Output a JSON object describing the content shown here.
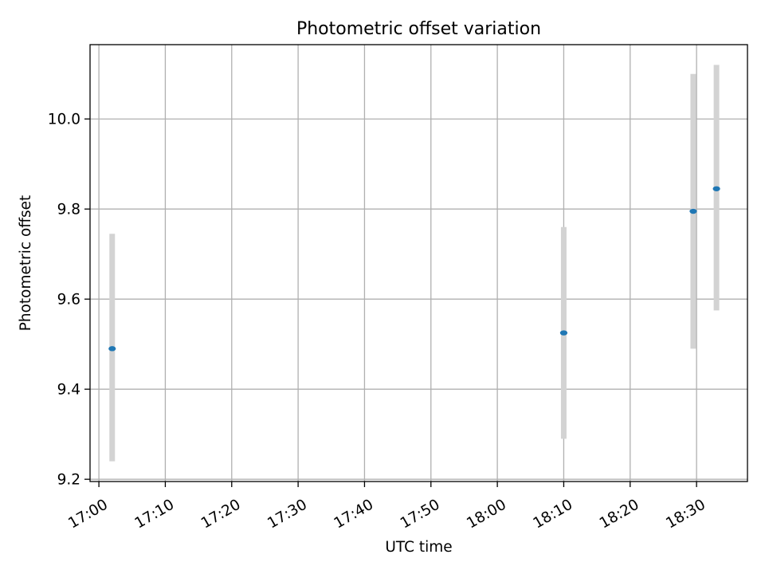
{
  "chart_data": {
    "type": "scatter",
    "title": "Photometric offset variation",
    "xlabel": "UTC time",
    "ylabel": "Photometric offset",
    "x_ticks": [
      "17:00",
      "17:10",
      "17:20",
      "17:30",
      "17:40",
      "17:50",
      "18:00",
      "18:10",
      "18:20",
      "18:30"
    ],
    "y_ticks": [
      "9.2",
      "9.4",
      "9.6",
      "9.8",
      "10.0"
    ],
    "xlim": [
      "16:58:40",
      "18:37:40"
    ],
    "ylim": [
      9.195,
      10.165
    ],
    "grid": true,
    "series": [
      {
        "points": [
          {
            "x": "17:02:00",
            "y": 9.49,
            "err_low": 9.24,
            "err_high": 9.745
          },
          {
            "x": "18:10:00",
            "y": 9.525,
            "err_low": 9.29,
            "err_high": 9.76
          },
          {
            "x": "18:29:30",
            "y": 9.795,
            "err_low": 9.49,
            "err_high": 10.1
          },
          {
            "x": "18:33:00",
            "y": 9.845,
            "err_low": 9.575,
            "err_high": 10.12
          }
        ]
      }
    ],
    "colors": {
      "marker": "#1f77b4",
      "errorbar": "#d3d3d3",
      "grid": "#b0b0b0",
      "axes": "#000000"
    }
  }
}
